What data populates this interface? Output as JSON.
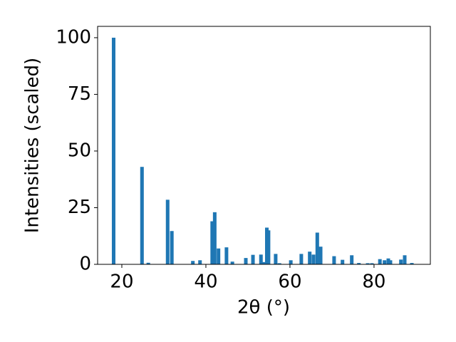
{
  "chart_data": {
    "type": "bar",
    "x_label": "2θ (°)",
    "y_label": "Intensities (scaled)",
    "x": [
      18.05,
      24.8,
      26.3,
      30.9,
      31.9,
      36.9,
      38.6,
      41.5,
      42.1,
      43.0,
      44.9,
      46.3,
      49.5,
      51.2,
      53.1,
      53.7,
      54.5,
      54.9,
      56.6,
      57.5,
      60.2,
      62.7,
      64.7,
      65.6,
      66.5,
      67.3,
      70.5,
      72.5,
      74.7,
      76.4,
      78.5,
      79.5,
      81.4,
      82.5,
      83.4,
      83.9,
      86.4,
      87.3,
      89.0
    ],
    "values": [
      100,
      43,
      0.7,
      28.5,
      14.7,
      1.5,
      1.8,
      19,
      23,
      7,
      7.5,
      1.2,
      2.8,
      4.2,
      4.3,
      1,
      16.2,
      15,
      4.6,
      0.5,
      1.8,
      4.6,
      5.6,
      4.3,
      14,
      7.8,
      3.6,
      2,
      4,
      0.6,
      0.5,
      0.5,
      2.3,
      1.8,
      2.6,
      1.8,
      2.1,
      4,
      0.6
    ],
    "color": "#1f77b4",
    "xlim": [
      14.24,
      93.4
    ],
    "xticks": [
      20,
      40,
      60,
      80
    ],
    "ylim": [
      0,
      105
    ],
    "yticks": [
      0,
      25,
      50,
      75,
      100
    ],
    "grid": false
  }
}
